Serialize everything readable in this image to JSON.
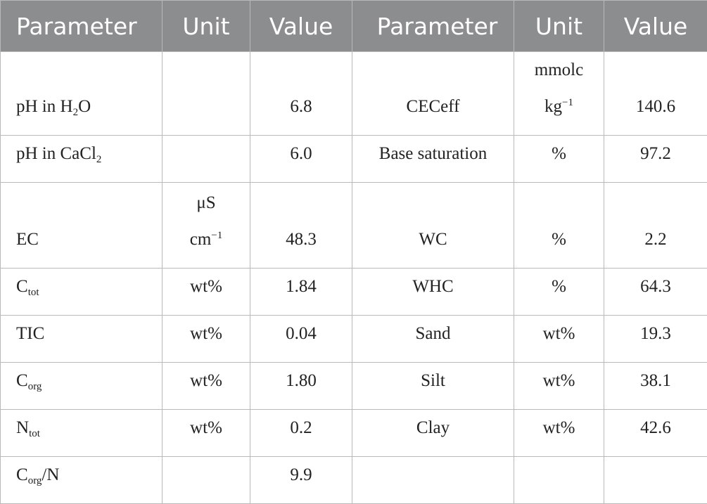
{
  "table": {
    "header": [
      "Parameter",
      "Unit",
      "Value",
      "Parameter",
      "Unit",
      "Value"
    ],
    "rows": [
      [
        [
          "pH in H",
          {
            "sub": "2"
          },
          "O"
        ],
        null,
        "6.8",
        "CECeff",
        [
          "mmolc kg",
          {
            "sup": "−1"
          }
        ],
        "140.6"
      ],
      [
        [
          "pH in CaCl",
          {
            "sub": "2"
          }
        ],
        null,
        "6.0",
        "Base saturation",
        "%",
        "97.2"
      ],
      [
        "EC",
        [
          "μS cm",
          {
            "sup": "−1"
          }
        ],
        "48.3",
        "WC",
        "%",
        "2.2"
      ],
      [
        [
          "C",
          {
            "sub": "tot"
          }
        ],
        "wt%",
        "1.84",
        "WHC",
        "%",
        "64.3"
      ],
      [
        "TIC",
        "wt%",
        "0.04",
        "Sand",
        "wt%",
        "19.3"
      ],
      [
        [
          "C",
          {
            "sub": "org"
          }
        ],
        "wt%",
        "1.80",
        "Silt",
        "wt%",
        "38.1"
      ],
      [
        [
          "N",
          {
            "sub": "tot"
          }
        ],
        "wt%",
        "0.2",
        "Clay",
        "wt%",
        "42.6"
      ],
      [
        [
          "C",
          {
            "sub": "org"
          },
          "/N"
        ],
        null,
        "9.9",
        null,
        null,
        null
      ]
    ]
  }
}
